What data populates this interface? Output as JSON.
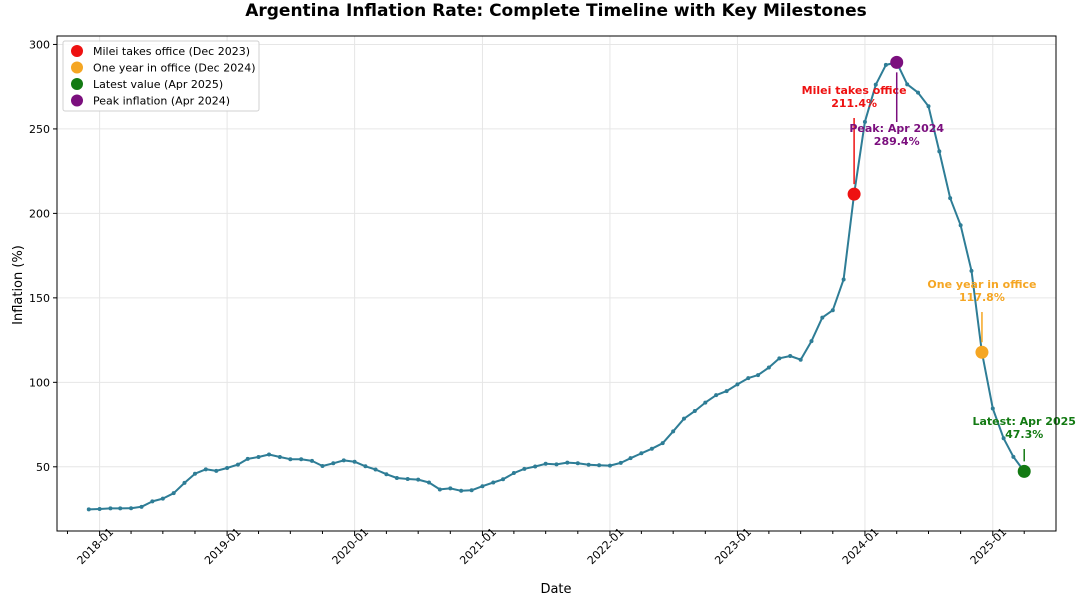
{
  "chart_data": {
    "type": "line",
    "title": "Argentina Inflation Rate: Complete Timeline with Key Milestones",
    "xlabel": "Date",
    "ylabel": "Inflation (%)",
    "x_range": [
      "2017-09-01",
      "2025-07-01"
    ],
    "ylim": [
      12,
      305
    ],
    "grid": true,
    "line_color": "#2e7d96",
    "x_ticks": [
      "2018-01",
      "2019-01",
      "2020-01",
      "2021-01",
      "2022-01",
      "2023-01",
      "2024-01",
      "2025-01"
    ],
    "y_ticks": [
      50,
      100,
      150,
      200,
      250,
      300
    ],
    "start_month": "2017-12",
    "values": [
      24.8,
      25.0,
      25.4,
      25.4,
      25.5,
      26.3,
      29.5,
      31.2,
      34.4,
      40.5,
      45.9,
      48.5,
      47.6,
      49.3,
      51.3,
      54.7,
      55.8,
      57.3,
      55.8,
      54.5,
      54.5,
      53.5,
      50.5,
      52.1,
      53.8,
      53.0,
      50.3,
      48.4,
      45.6,
      43.4,
      42.8,
      42.4,
      40.7,
      36.6,
      37.2,
      35.8,
      36.1,
      38.5,
      40.7,
      42.6,
      46.3,
      48.8,
      50.2,
      51.8,
      51.4,
      52.5,
      52.1,
      51.2,
      50.9,
      50.7,
      52.3,
      55.1,
      58.0,
      60.7,
      64.0,
      71.0,
      78.5,
      83.0,
      88.0,
      92.4,
      94.8,
      98.8,
      102.5,
      104.3,
      108.8,
      114.2,
      115.6,
      113.4,
      124.4,
      138.3,
      142.7,
      160.9,
      211.4,
      254.2,
      276.2,
      287.9,
      289.4,
      276.4,
      271.5,
      263.4,
      236.7,
      209.0,
      193.0,
      166.0,
      117.8,
      84.5,
      66.9,
      55.9,
      47.3
    ],
    "milestones": [
      {
        "label": "Milei takes office (Dec 2023)",
        "date": "2023-12",
        "value": 211.4,
        "color": "#ee1111",
        "annotation": "Milei takes office",
        "annotation_value": "211.4%"
      },
      {
        "label": "One year in office (Dec 2024)",
        "date": "2024-12",
        "value": 117.8,
        "color": "#f5a623",
        "annotation": "One year in office",
        "annotation_value": "117.8%"
      },
      {
        "label": "Latest value (Apr 2025)",
        "date": "2025-04",
        "value": 47.3,
        "color": "#137a13",
        "annotation": "Latest: Apr 2025",
        "annotation_value": "47.3%"
      },
      {
        "label": "Peak inflation (Apr 2024)",
        "date": "2024-04",
        "value": 289.4,
        "color": "#7b0f7e",
        "annotation": "Peak: Apr 2024",
        "annotation_value": "289.4%"
      }
    ],
    "legend_position": "top-left"
  }
}
